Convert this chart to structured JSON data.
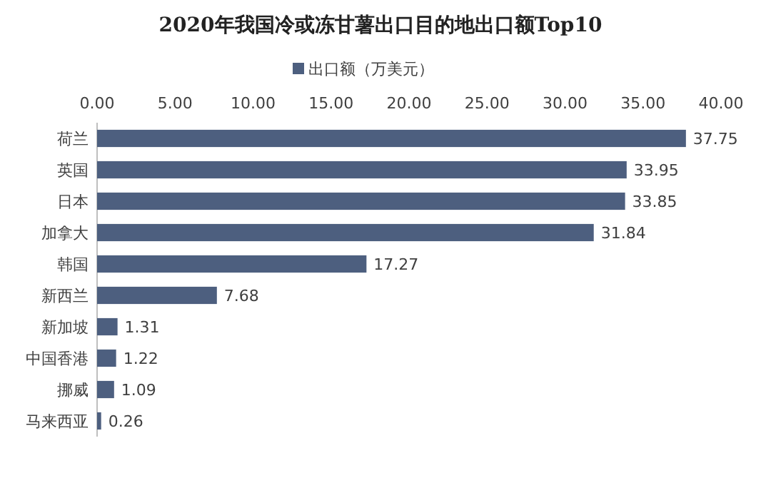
{
  "chart_data": {
    "type": "bar",
    "orientation": "horizontal",
    "title": "2020年我国冷或冻甘薯出口目的地出口额Top10",
    "categories": [
      "荷兰",
      "英国",
      "日本",
      "加拿大",
      "韩国",
      "新西兰",
      "新加坡",
      "中国香港",
      "挪威",
      "马来西亚"
    ],
    "series": [
      {
        "name": "出口额（万美元）",
        "color": "#4d5f7f",
        "values": [
          37.75,
          33.95,
          33.85,
          31.84,
          17.27,
          7.68,
          1.31,
          1.22,
          1.09,
          0.26
        ]
      }
    ],
    "xlim": [
      0,
      40
    ],
    "xticks": [
      {
        "value": 0,
        "label": "0.00"
      },
      {
        "value": 5,
        "label": "5.00"
      },
      {
        "value": 10,
        "label": "10.00"
      },
      {
        "value": 15,
        "label": "15.00"
      },
      {
        "value": 20,
        "label": "20.00"
      },
      {
        "value": 25,
        "label": "25.00"
      },
      {
        "value": 30,
        "label": "30.00"
      },
      {
        "value": 35,
        "label": "35.00"
      },
      {
        "value": 40,
        "label": "40.00"
      }
    ],
    "data_labels": true,
    "legend": "top",
    "grid": false
  }
}
